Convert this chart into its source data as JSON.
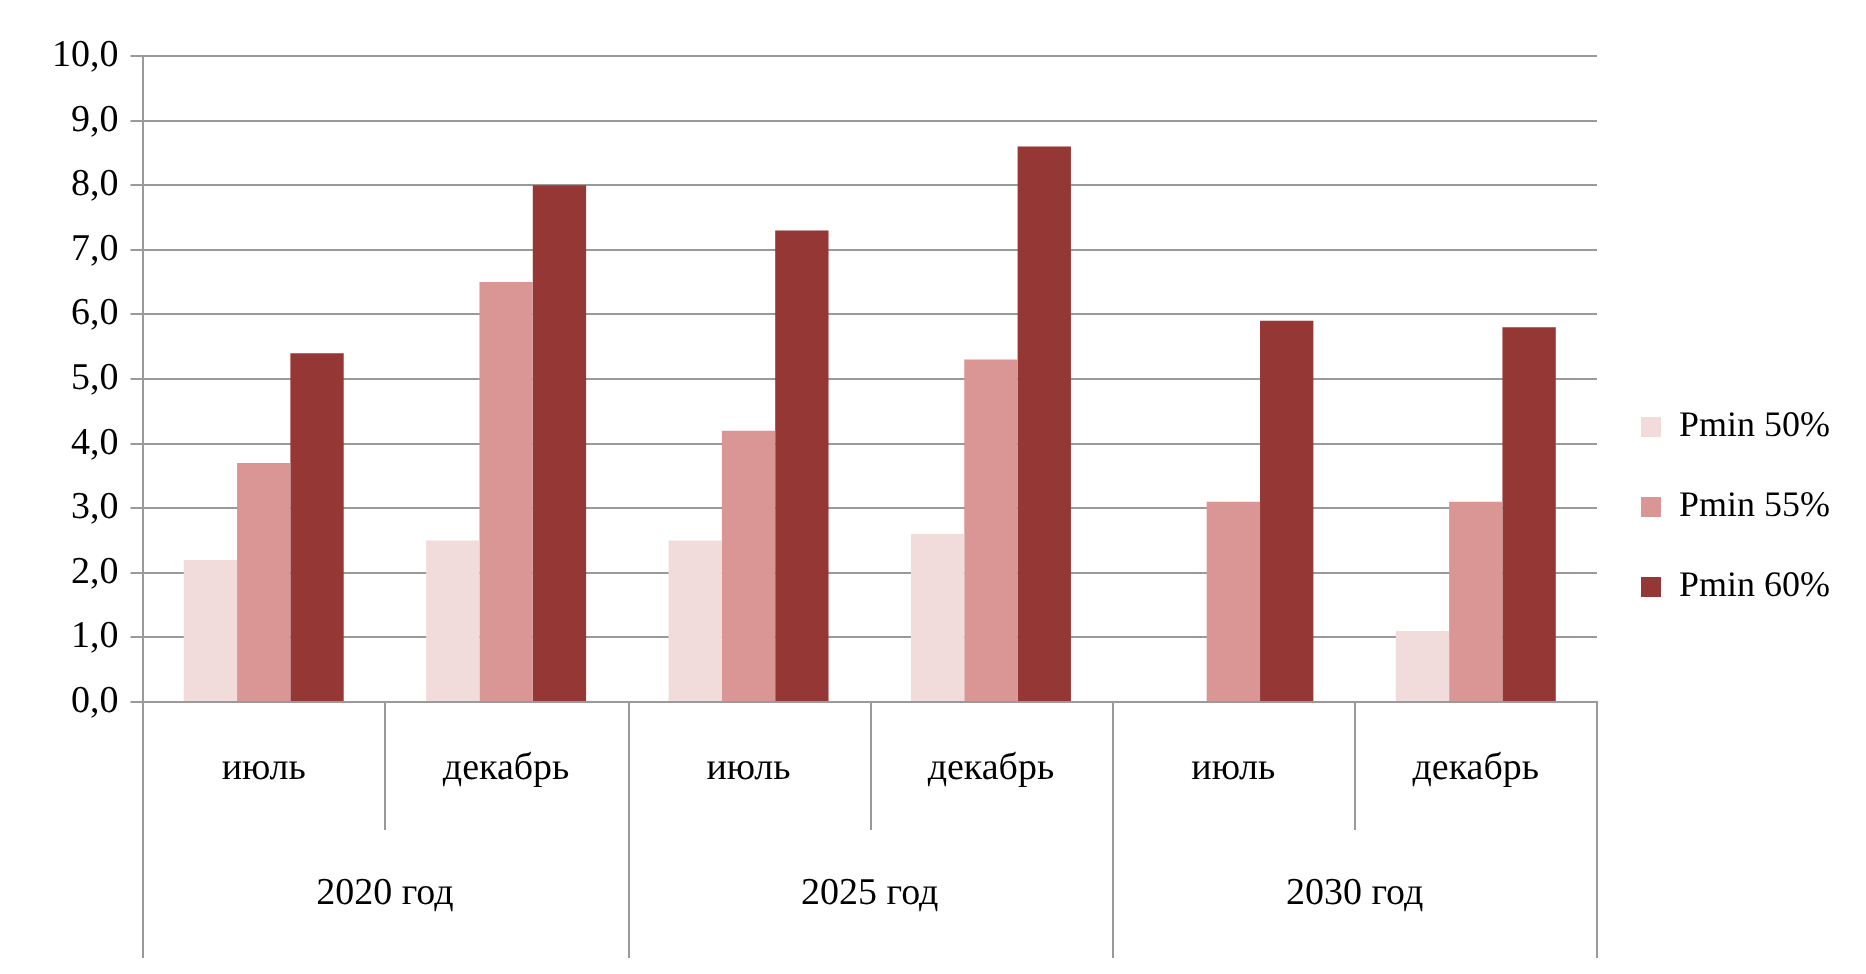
{
  "chart_data": {
    "type": "bar",
    "categories": [
      "июль",
      "декабрь",
      "июль",
      "декабрь",
      "июль",
      "декабрь"
    ],
    "series": [
      {
        "name": "Pmin 50%",
        "color": "#f2dcdb",
        "values": [
          2.2,
          2.5,
          2.5,
          2.6,
          null,
          1.1
        ]
      },
      {
        "name": "Pmin 55%",
        "color": "#d99694",
        "values": [
          3.7,
          6.5,
          4.2,
          5.3,
          3.1,
          3.1
        ]
      },
      {
        "name": "Pmin 60%",
        "color": "#953735",
        "values": [
          5.4,
          8.0,
          7.3,
          8.6,
          5.9,
          5.8
        ]
      }
    ],
    "ylim": [
      0,
      10
    ],
    "yticks": [
      {
        "value": 0,
        "label": "0,0"
      },
      {
        "value": 1,
        "label": "1,0"
      },
      {
        "value": 2,
        "label": "2,0"
      },
      {
        "value": 3,
        "label": "3,0"
      },
      {
        "value": 4,
        "label": "4,0"
      },
      {
        "value": 5,
        "label": "5,0"
      },
      {
        "value": 6,
        "label": "6,0"
      },
      {
        "value": 7,
        "label": "7,0"
      },
      {
        "value": 8,
        "label": "8,0"
      },
      {
        "value": 9,
        "label": "9,0"
      },
      {
        "value": 10,
        "label": "10,0"
      }
    ],
    "grid": "y",
    "legend": "right",
    "annotations": [
      "2020 год",
      "2025 год",
      "2030 год"
    ]
  }
}
